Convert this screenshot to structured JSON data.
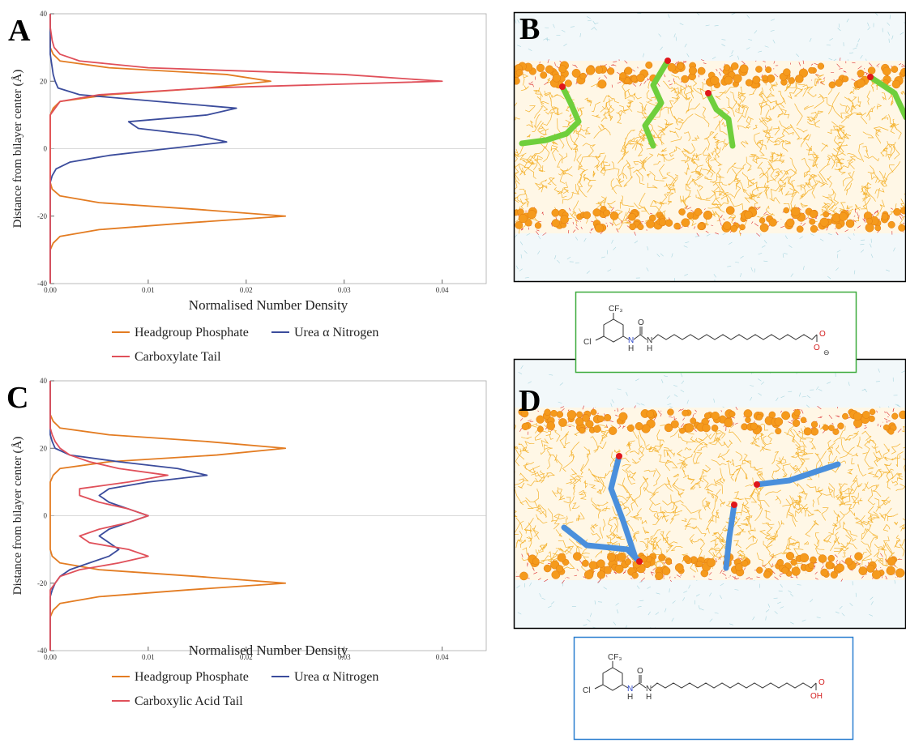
{
  "chart_data": [
    {
      "type": "line",
      "orientation": "horizontal",
      "xlabel": "Distance from bilayer center (Å)",
      "ylabel": "Normalised Number Density",
      "x": [
        -40,
        -38,
        -36,
        -34,
        -32,
        -30,
        -28,
        -26,
        -24,
        -22,
        -20,
        -18,
        -16,
        -14,
        -12,
        -10,
        -8,
        -6,
        -4,
        -2,
        0,
        2,
        4,
        6,
        8,
        10,
        12,
        14,
        16,
        18,
        20,
        22,
        24,
        26,
        28,
        30,
        32,
        34,
        36,
        38,
        40
      ],
      "xlim": [
        -40,
        40
      ],
      "xticks": [
        -40,
        -20,
        0,
        20,
        40
      ],
      "ylim": [
        0,
        0.0445
      ],
      "yticks": [
        {
          "value": 0,
          "label": "0.00"
        },
        0.01,
        0.02,
        0.03,
        0.04
      ],
      "zero_line": true,
      "series": [
        {
          "name": "Headgroup Phosphate",
          "color": "#e37c22",
          "values": [
            0,
            0,
            0,
            0,
            0,
            0,
            0.0003,
            0.001,
            0.005,
            0.014,
            0.024,
            0.015,
            0.005,
            0.001,
            0.0002,
            0,
            0,
            0,
            0,
            0,
            0,
            0,
            0,
            0,
            0,
            0,
            0.0003,
            0.001,
            0.006,
            0.016,
            0.0225,
            0.018,
            0.006,
            0.001,
            0.0003,
            0,
            0,
            0,
            0,
            0,
            0
          ]
        },
        {
          "name": "Urea α Nitrogen",
          "color": "#3b4c9c",
          "values": [
            0,
            0,
            0,
            0,
            0,
            0,
            0,
            0,
            0,
            0,
            0,
            0,
            0,
            0,
            0,
            0,
            0.0002,
            0.0006,
            0.002,
            0.006,
            0.012,
            0.018,
            0.015,
            0.009,
            0.008,
            0.016,
            0.019,
            0.011,
            0.003,
            0.0008,
            0.0005,
            0.0003,
            0.0002,
            0.0001,
            0,
            0,
            0,
            0,
            0,
            0,
            0
          ]
        },
        {
          "name": "Carboxylate Tail",
          "color": "#e0505a",
          "values": [
            0,
            0,
            0,
            0,
            0,
            0,
            0,
            0,
            0,
            0,
            0,
            0,
            0,
            0,
            0,
            0,
            0,
            0,
            0,
            0,
            0,
            0,
            0,
            0,
            0,
            0,
            0.0005,
            0.001,
            0.005,
            0.016,
            0.04,
            0.03,
            0.01,
            0.003,
            0.001,
            0.0004,
            0.0002,
            0.0001,
            0,
            0,
            0
          ]
        }
      ]
    },
    {
      "type": "line",
      "orientation": "horizontal",
      "xlabel": "Distance from bilayer center (Å)",
      "ylabel": "Normalised Number Density",
      "x": [
        -40,
        -38,
        -36,
        -34,
        -32,
        -30,
        -28,
        -26,
        -24,
        -22,
        -20,
        -18,
        -16,
        -14,
        -12,
        -10,
        -8,
        -6,
        -4,
        -2,
        0,
        2,
        4,
        6,
        8,
        10,
        12,
        14,
        16,
        18,
        20,
        22,
        24,
        26,
        28,
        30,
        32,
        34,
        36,
        38,
        40
      ],
      "xlim": [
        -40,
        40
      ],
      "xticks": [
        -40,
        -20,
        0,
        20,
        40
      ],
      "ylim": [
        0,
        0.0445
      ],
      "yticks": [
        {
          "value": 0,
          "label": "0.00"
        },
        0.01,
        0.02,
        0.03,
        0.04
      ],
      "zero_line": true,
      "series": [
        {
          "name": "Headgroup Phosphate",
          "color": "#e37c22",
          "values": [
            0,
            0,
            0,
            0,
            0,
            0,
            0.0003,
            0.001,
            0.005,
            0.014,
            0.024,
            0.015,
            0.005,
            0.001,
            0.0002,
            0,
            0,
            0,
            0,
            0,
            0,
            0,
            0,
            0,
            0,
            0,
            0.0003,
            0.001,
            0.006,
            0.017,
            0.024,
            0.016,
            0.006,
            0.001,
            0.0003,
            0,
            0,
            0,
            0,
            0,
            0
          ]
        },
        {
          "name": "Urea α Nitrogen",
          "color": "#3b4c9c",
          "values": [
            0,
            0,
            0,
            0,
            0,
            0,
            0,
            0,
            0,
            0.0002,
            0.0005,
            0.001,
            0.002,
            0.004,
            0.006,
            0.007,
            0.006,
            0.005,
            0.006,
            0.008,
            0.01,
            0.008,
            0.006,
            0.005,
            0.006,
            0.01,
            0.016,
            0.013,
            0.007,
            0.002,
            0.0005,
            0.0002,
            0,
            0,
            0,
            0,
            0,
            0,
            0,
            0,
            0
          ]
        },
        {
          "name": "Carboxylic Acid Tail",
          "color": "#e0505a",
          "values": [
            0,
            0,
            0,
            0,
            0,
            0,
            0,
            0,
            0,
            0,
            0.0005,
            0.001,
            0.003,
            0.007,
            0.01,
            0.008,
            0.004,
            0.003,
            0.005,
            0.008,
            0.01,
            0.008,
            0.005,
            0.003,
            0.003,
            0.008,
            0.012,
            0.007,
            0.004,
            0.002,
            0.001,
            0.0005,
            0.0002,
            0,
            0,
            0,
            0,
            0,
            0,
            0,
            0
          ]
        }
      ]
    }
  ],
  "panel_labels": [
    "A",
    "B",
    "C",
    "D"
  ],
  "structures": [
    {
      "labels": [
        "CF₃",
        "Cl",
        "N",
        "H",
        "O",
        "N",
        "H",
        "O",
        "O",
        "⊖"
      ]
    },
    {
      "labels": [
        "CF₃",
        "Cl",
        "N",
        "H",
        "O",
        "N",
        "H",
        "O",
        "OH"
      ]
    }
  ]
}
